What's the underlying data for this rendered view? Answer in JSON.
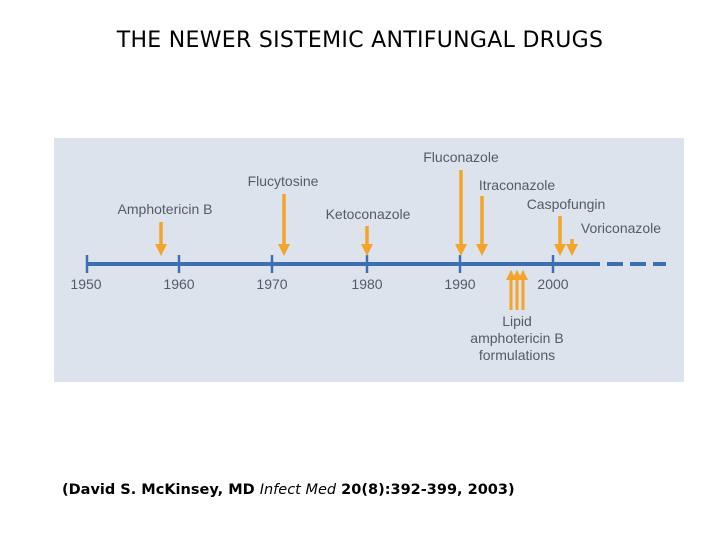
{
  "title": "THE NEWER SISTEMIC ANTIFUNGAL DRUGS",
  "colors": {
    "axis": "#3d6fb0",
    "arrow": "#f2a528",
    "panel": "#dde3ec",
    "text": "#555b66"
  },
  "timeline": {
    "years": [
      "1950",
      "1960",
      "1970",
      "1980",
      "1990",
      "2000"
    ],
    "drugs": [
      {
        "name": "Amphotericin B",
        "year": 1958
      },
      {
        "name": "Flucytosine",
        "year": 1971
      },
      {
        "name": "Ketoconazole",
        "year": 1980
      },
      {
        "name": "Fluconazole",
        "year": 1990
      },
      {
        "name": "Itraconazole",
        "year": 1992
      },
      {
        "name": "Caspofungin",
        "year": 2001
      },
      {
        "name": "Voriconazole",
        "year": 2002
      }
    ],
    "lipid_label_lines": [
      "Lipid",
      "amphotericin B",
      "formulations"
    ],
    "lipid_year": 1996
  },
  "citation": {
    "authors": "(David S. McKinsey, MD ",
    "journal": "Infect Med",
    "details": " 20(8):392-399, 2003)"
  }
}
